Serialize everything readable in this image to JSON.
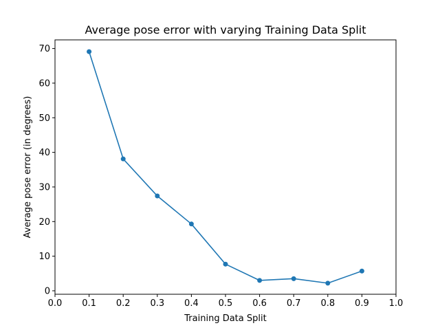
{
  "chart_data": {
    "type": "line",
    "title": "Average pose error with varying Training Data Split",
    "xlabel": "Training Data Split",
    "ylabel": "Average pose error (in degrees)",
    "xlim": [
      0.0,
      1.0
    ],
    "ylim": [
      -1.0,
      72.5
    ],
    "xticks": [
      "0.0",
      "0.1",
      "0.2",
      "0.3",
      "0.4",
      "0.5",
      "0.6",
      "0.7",
      "0.8",
      "0.9",
      "1.0"
    ],
    "yticks": [
      "0",
      "10",
      "20",
      "30",
      "40",
      "50",
      "60",
      "70"
    ],
    "grid": false,
    "series": [
      {
        "x": [
          0.1,
          0.2,
          0.3,
          0.4,
          0.5,
          0.6,
          0.7,
          0.8,
          0.9
        ],
        "y": [
          69.1,
          38.1,
          27.4,
          19.3,
          7.7,
          3.0,
          3.5,
          2.2,
          5.7
        ],
        "marker": "circle"
      }
    ],
    "colors": {
      "series": "#1f77b4",
      "axes": "#000000",
      "background": "#ffffff"
    }
  }
}
